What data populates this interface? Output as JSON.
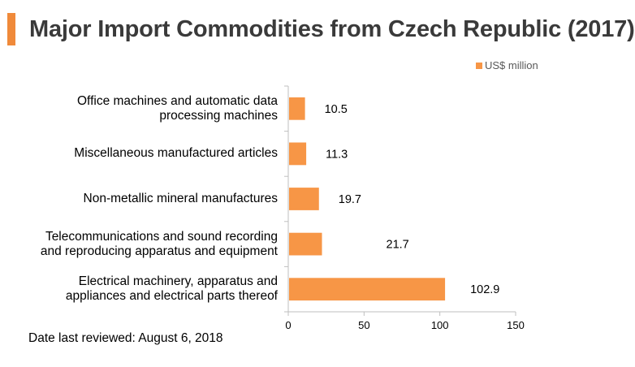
{
  "title": "Major Import Commodities from Czech Republic (2017)",
  "accent_color": "#f08a3a",
  "bar_color": "#f79646",
  "footer": "Date last reviewed: August 6, 2018",
  "chart_data": {
    "type": "bar",
    "orientation": "horizontal",
    "title": "Major Import Commodities from Czech Republic (2017)",
    "categories": [
      [
        "Office machines and automatic data",
        "processing machines"
      ],
      [
        "Miscellaneous manufactured articles"
      ],
      [
        "Non-metallic mineral manufactures"
      ],
      [
        "Telecommunications and sound recording",
        "and reproducing apparatus and equipment"
      ],
      [
        "Electrical machinery, apparatus and",
        "appliances and electrical parts thereof"
      ]
    ],
    "series": [
      {
        "name": "US$ million",
        "values": [
          10.5,
          11.3,
          19.7,
          21.7,
          102.9
        ]
      }
    ],
    "value_labels": [
      "10.5",
      "11.3",
      "19.7",
      "21.7",
      "102.9"
    ],
    "xlim": [
      0,
      150
    ],
    "xticks": [
      0,
      50,
      100,
      150
    ],
    "legend_position": "top-right",
    "grid": false
  }
}
